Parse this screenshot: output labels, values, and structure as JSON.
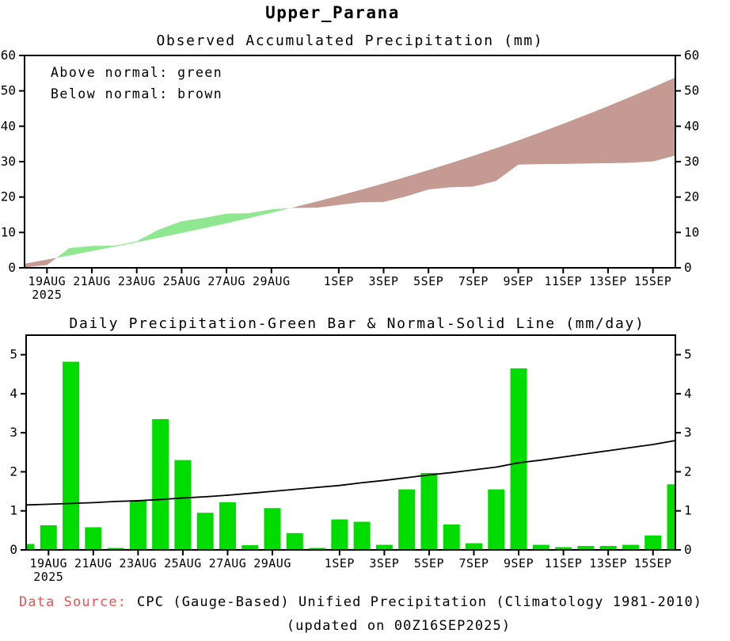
{
  "page_title": "Upper_Parana",
  "colors": {
    "above_normal_green": "#8FE88F",
    "below_normal_brown": "#C59A92",
    "bar_green": "#00DC00",
    "line_black": "#000000",
    "data_source_red": "#F05050"
  },
  "footer": {
    "data_source_label": "Data Source:",
    "data_source_text": "CPC (Gauge-Based) Unified Precipitation (Climatology 1981-2010)",
    "updated_text": "(updated on 00Z16SEP2025)"
  },
  "chart_data": [
    {
      "type": "area",
      "title": "Observed Accumulated Precipitation (mm)",
      "annotations": [
        "Above normal: green",
        "Below normal: brown"
      ],
      "legend_position": "top-left",
      "grid": false,
      "ylim": [
        0,
        60
      ],
      "yticks": [
        0,
        10,
        20,
        30,
        40,
        50,
        60
      ],
      "x": [
        "18AUG",
        "19AUG",
        "20AUG",
        "21AUG",
        "22AUG",
        "23AUG",
        "24AUG",
        "25AUG",
        "26AUG",
        "27AUG",
        "28AUG",
        "29AUG",
        "30AUG",
        "31AUG",
        "1SEP",
        "2SEP",
        "3SEP",
        "4SEP",
        "5SEP",
        "6SEP",
        "7SEP",
        "8SEP",
        "9SEP",
        "10SEP",
        "11SEP",
        "12SEP",
        "13SEP",
        "14SEP",
        "15SEP",
        "16SEP"
      ],
      "xtick_indices": [
        1,
        3,
        5,
        7,
        9,
        11,
        14,
        16,
        18,
        20,
        22,
        24,
        26,
        28
      ],
      "xtick_labels": [
        "19AUG",
        "21AUG",
        "23AUG",
        "25AUG",
        "27AUG",
        "29AUG",
        "1SEP",
        "3SEP",
        "5SEP",
        "7SEP",
        "9SEP",
        "11SEP",
        "13SEP",
        "15SEP"
      ],
      "year_label": "2025",
      "above_color": "#8FE88F",
      "below_color": "#C59A92",
      "series": [
        {
          "name": "Observed accumulated precipitation (mm)",
          "values": [
            0.15,
            0.78,
            5.6,
            6.18,
            6.23,
            7.5,
            10.85,
            13.15,
            14.1,
            15.32,
            15.44,
            16.51,
            16.94,
            16.99,
            17.77,
            18.49,
            18.62,
            20.17,
            22.14,
            22.79,
            22.96,
            24.51,
            29.16,
            29.29,
            29.36,
            29.46,
            29.56,
            29.69,
            30.06,
            31.74
          ]
        },
        {
          "name": "Normal (climatology) accumulated precipitation (mm)",
          "values": [
            1.15,
            2.32,
            3.51,
            4.72,
            5.96,
            7.22,
            8.51,
            9.84,
            11.2,
            12.6,
            14.05,
            15.55,
            17.1,
            18.7,
            20.35,
            22.07,
            23.85,
            25.7,
            27.62,
            29.6,
            31.65,
            33.77,
            36.0,
            38.3,
            40.68,
            43.14,
            45.68,
            48.3,
            51.0,
            53.8
          ]
        }
      ]
    },
    {
      "type": "bar",
      "title": "Daily Precipitation-Green Bar & Normal-Solid Line (mm/day)",
      "grid": false,
      "ylim": [
        0,
        5.5
      ],
      "yticks": [
        0,
        1,
        2,
        3,
        4,
        5
      ],
      "x": [
        "18AUG",
        "19AUG",
        "20AUG",
        "21AUG",
        "22AUG",
        "23AUG",
        "24AUG",
        "25AUG",
        "26AUG",
        "27AUG",
        "28AUG",
        "29AUG",
        "30AUG",
        "31AUG",
        "1SEP",
        "2SEP",
        "3SEP",
        "4SEP",
        "5SEP",
        "6SEP",
        "7SEP",
        "8SEP",
        "9SEP",
        "10SEP",
        "11SEP",
        "12SEP",
        "13SEP",
        "14SEP",
        "15SEP",
        "16SEP"
      ],
      "xtick_indices": [
        1,
        3,
        5,
        7,
        9,
        11,
        14,
        16,
        18,
        20,
        22,
        24,
        26,
        28
      ],
      "xtick_labels": [
        "19AUG",
        "21AUG",
        "23AUG",
        "25AUG",
        "27AUG",
        "29AUG",
        "1SEP",
        "3SEP",
        "5SEP",
        "7SEP",
        "9SEP",
        "11SEP",
        "13SEP",
        "15SEP"
      ],
      "year_label": "2025",
      "bar_color": "#00DC00",
      "line_color": "#000000",
      "series": [
        {
          "name": "Daily precipitation green bar (mm/day)",
          "values": [
            0.15,
            0.63,
            4.82,
            0.58,
            0.05,
            1.27,
            3.35,
            2.3,
            0.95,
            1.22,
            0.12,
            1.07,
            0.43,
            0.05,
            0.78,
            0.72,
            0.13,
            1.55,
            1.97,
            0.65,
            0.17,
            1.55,
            4.65,
            0.13,
            0.07,
            0.1,
            0.1,
            0.13,
            0.37,
            1.68
          ]
        },
        {
          "name": "Normal solid line (mm/day)",
          "values": [
            1.15,
            1.17,
            1.19,
            1.21,
            1.24,
            1.26,
            1.29,
            1.33,
            1.36,
            1.4,
            1.45,
            1.5,
            1.55,
            1.6,
            1.65,
            1.72,
            1.78,
            1.85,
            1.92,
            1.98,
            2.05,
            2.12,
            2.23,
            2.3,
            2.38,
            2.46,
            2.54,
            2.62,
            2.7,
            2.8
          ]
        }
      ]
    }
  ]
}
